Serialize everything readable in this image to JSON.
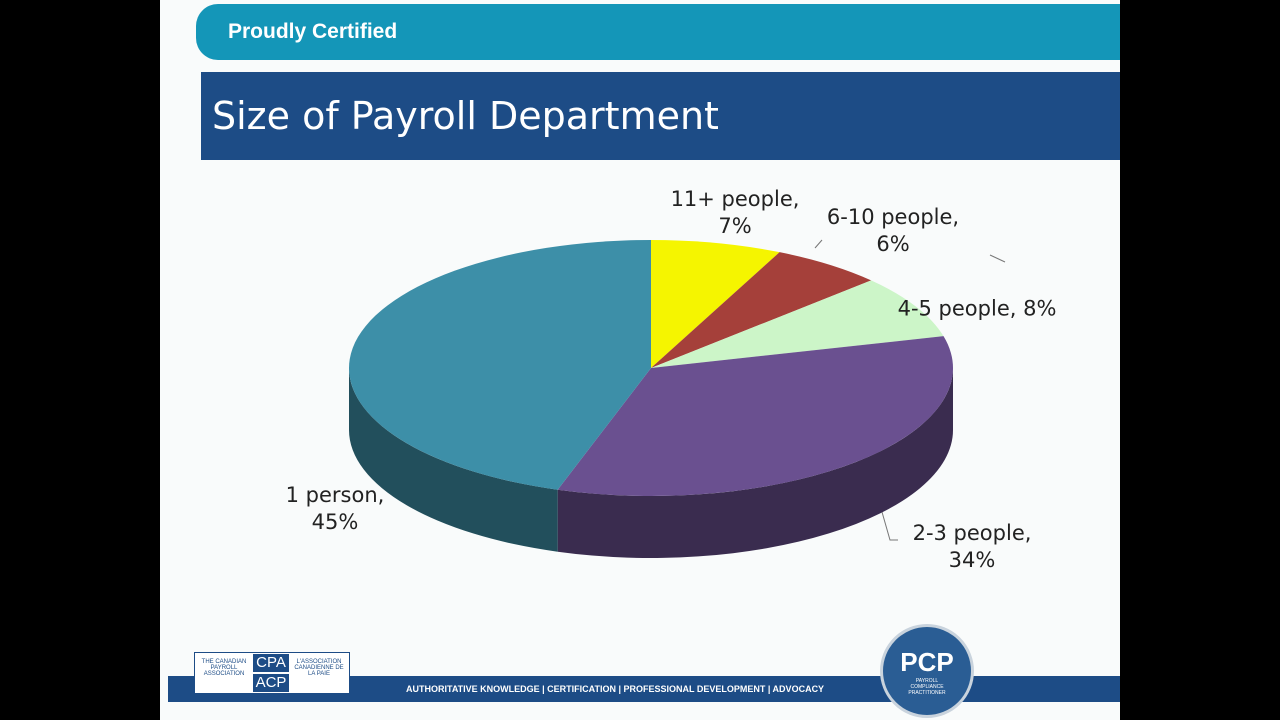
{
  "header": "Proudly Certified",
  "chart_data": {
    "type": "pie",
    "title": "Size of Payroll Department",
    "values": [
      7,
      6,
      8,
      34,
      45
    ],
    "value_labels": [
      "11+ people, 7%",
      "6-10 people, 6%",
      "4-5 people, 8%",
      "2-3 people, 34%",
      "1 person, 45%"
    ],
    "colors": [
      "#f5f500",
      "#a5403a",
      "#ccf5c8",
      "#6a5090",
      "#3d8fa8"
    ]
  },
  "footer": {
    "tagline": "AUTHORITATIVE KNOWLEDGE | CERTIFICATION | PROFESSIONAL DEVELOPMENT | ADVOCACY",
    "cpa": "CPA",
    "acp": "ACP",
    "cpa_en": "THE CANADIAN PAYROLL ASSOCIATION",
    "cpa_fr": "L'ASSOCIATION CANADIENNE DE LA PAIE",
    "pcp": "PCP",
    "pcp_sub": "PAYROLL COMPLIANCE PRACTITIONER"
  }
}
